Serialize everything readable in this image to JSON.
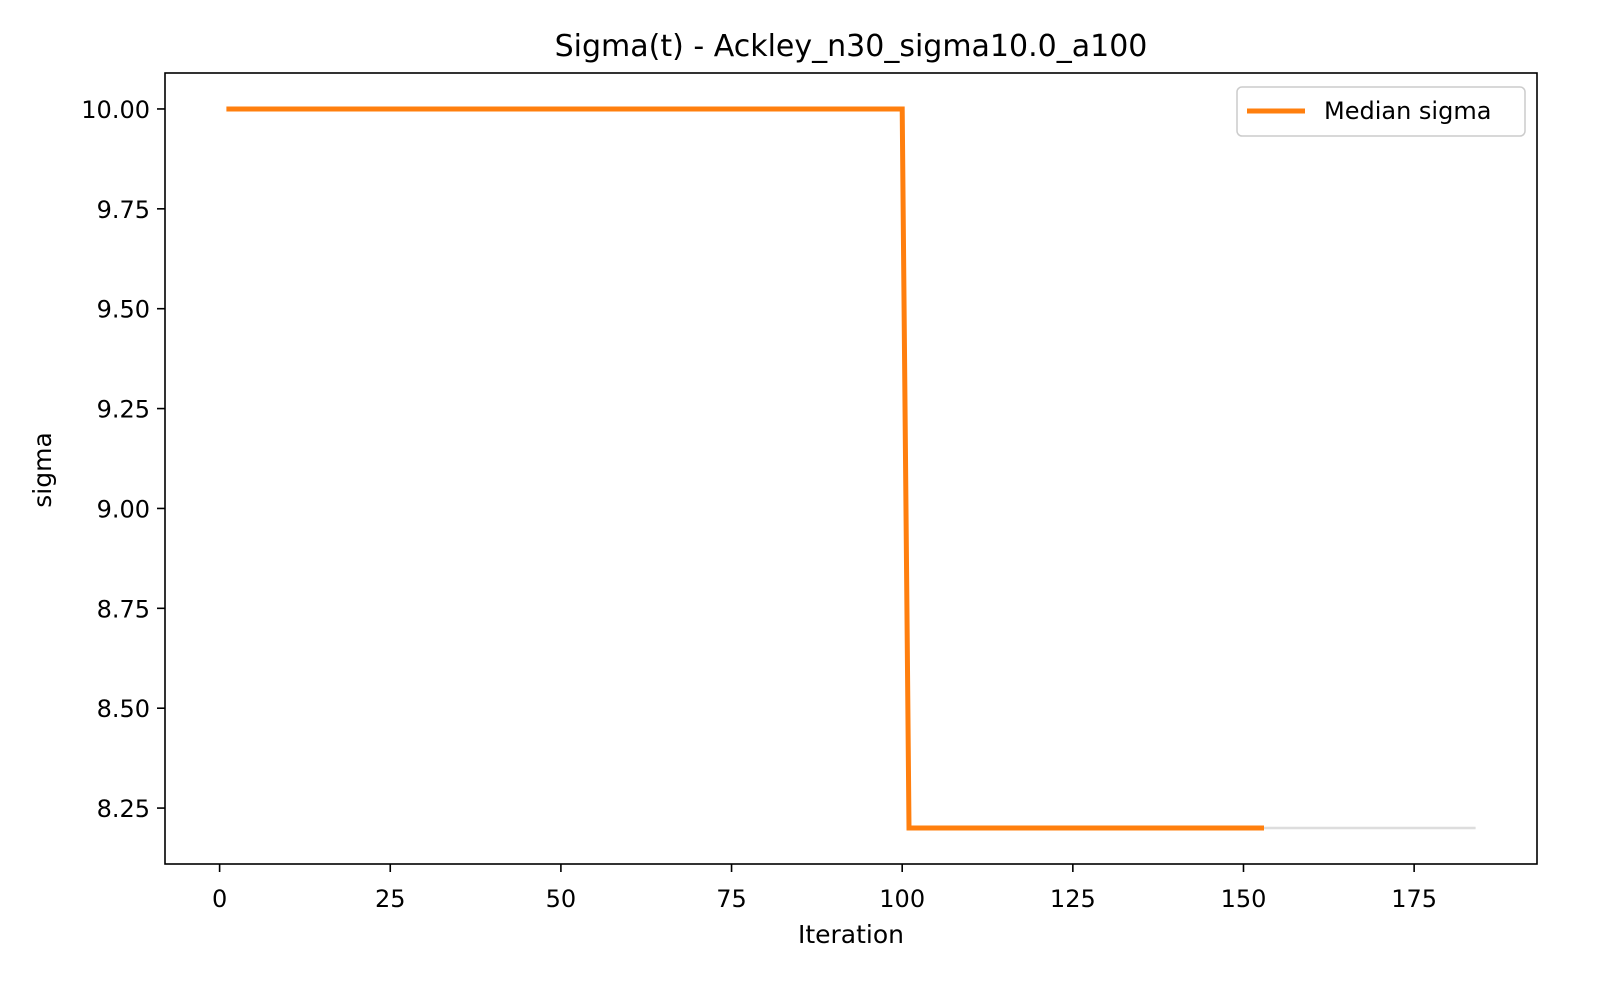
{
  "chart_data": {
    "type": "line",
    "title": "Sigma(t) - Ackley_n30_sigma10.0_a100",
    "xlabel": "Iteration",
    "ylabel": "sigma",
    "xlim": [
      -8,
      193
    ],
    "ylim": [
      8.11,
      10.09
    ],
    "xticks": [
      0,
      25,
      50,
      75,
      100,
      125,
      150,
      175
    ],
    "yticks": [
      8.25,
      8.5,
      8.75,
      9.0,
      9.25,
      9.5,
      9.75,
      10.0
    ],
    "ytick_format": 2,
    "grid": false,
    "legend": {
      "placement": "top-right",
      "entries": [
        "Median sigma"
      ]
    },
    "series": [
      {
        "name": "Median sigma",
        "color": "#ff7f0e",
        "x": [
          1,
          100,
          101,
          153
        ],
        "y": [
          10.0,
          10.0,
          8.2,
          8.2
        ]
      },
      {
        "color": "#dddddd",
        "x": [
          153,
          184
        ],
        "y": [
          8.2,
          8.2
        ]
      }
    ]
  }
}
